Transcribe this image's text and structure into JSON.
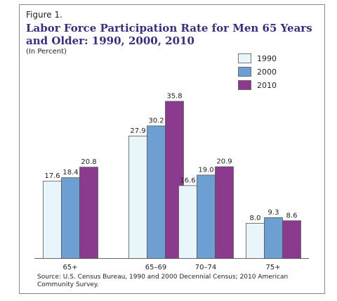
{
  "figure_label": "Figure 1.",
  "title": "Labor Force Participation Rate for Men 65 Years and Older: 1990, 2000, 2010",
  "subtitle": "(In Percent)",
  "source": "Source: U.S. Census Bureau, 1990 and 2000 Decennial Census; 2010 American Community Survey.",
  "colors": {
    "1990": "#e8f6fc",
    "2000": "#6e9fd2",
    "2010": "#8a3b8e",
    "border": "#555555"
  },
  "chart_data": {
    "type": "bar",
    "title": "Labor Force Participation Rate for Men 65 Years and Older: 1990, 2000, 2010",
    "categories": [
      "65+",
      "65–69",
      "70–74",
      "75+"
    ],
    "series": [
      {
        "name": "1990",
        "values": [
          17.6,
          27.9,
          16.6,
          8.0
        ],
        "labels": [
          "17.6",
          "27.9",
          "16.6",
          "8.0"
        ]
      },
      {
        "name": "2000",
        "values": [
          18.4,
          30.2,
          19.0,
          9.3
        ],
        "labels": [
          "18.4",
          "30.2",
          "19.0",
          "9.3"
        ]
      },
      {
        "name": "2010",
        "values": [
          20.8,
          35.8,
          20.9,
          8.6
        ],
        "labels": [
          "20.8",
          "35.8",
          "20.9",
          "8.6"
        ]
      }
    ],
    "ylim": [
      0,
      40
    ],
    "grid": false,
    "legend_position": "top-right",
    "xlabel": "",
    "ylabel": ""
  }
}
